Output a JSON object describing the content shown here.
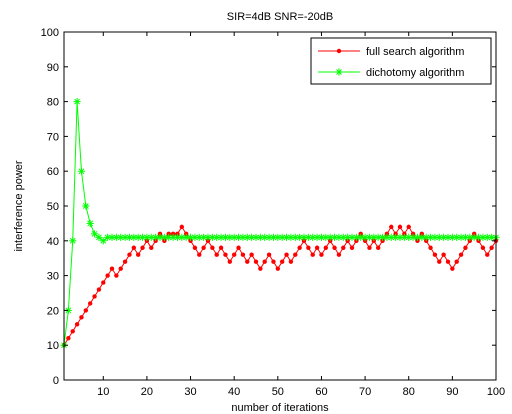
{
  "chart_data": {
    "type": "line",
    "title": "SIR=4dB SNR=-20dB",
    "xlabel": "number of iterations",
    "ylabel": "interference power",
    "xlim": [
      1,
      100
    ],
    "ylim": [
      0,
      100
    ],
    "xticks": [
      10,
      20,
      30,
      40,
      50,
      60,
      70,
      80,
      90,
      100
    ],
    "yticks": [
      0,
      10,
      20,
      30,
      40,
      50,
      60,
      70,
      80,
      90,
      100
    ],
    "grid": false,
    "legend_position": "top-right",
    "x": [
      1,
      2,
      3,
      4,
      5,
      6,
      7,
      8,
      9,
      10,
      11,
      12,
      13,
      14,
      15,
      16,
      17,
      18,
      19,
      20,
      21,
      22,
      23,
      24,
      25,
      26,
      27,
      28,
      29,
      30,
      31,
      32,
      33,
      34,
      35,
      36,
      37,
      38,
      39,
      40,
      41,
      42,
      43,
      44,
      45,
      46,
      47,
      48,
      49,
      50,
      51,
      52,
      53,
      54,
      55,
      56,
      57,
      58,
      59,
      60,
      61,
      62,
      63,
      64,
      65,
      66,
      67,
      68,
      69,
      70,
      71,
      72,
      73,
      74,
      75,
      76,
      77,
      78,
      79,
      80,
      81,
      82,
      83,
      84,
      85,
      86,
      87,
      88,
      89,
      90,
      91,
      92,
      93,
      94,
      95,
      96,
      97,
      98,
      99,
      100
    ],
    "series": [
      {
        "name": "full search algorithm",
        "color": "#ff0000",
        "marker": "dot",
        "values": [
          10,
          12,
          14,
          16,
          18,
          20,
          22,
          24,
          26,
          28,
          30,
          32,
          30,
          32,
          34,
          36,
          38,
          36,
          38,
          40,
          38,
          40,
          42,
          40,
          42,
          42,
          42,
          44,
          42,
          40,
          38,
          36,
          38,
          40,
          38,
          36,
          38,
          36,
          34,
          36,
          38,
          36,
          34,
          36,
          34,
          32,
          34,
          36,
          34,
          32,
          34,
          36,
          34,
          36,
          38,
          40,
          38,
          36,
          38,
          36,
          38,
          40,
          38,
          36,
          38,
          40,
          38,
          40,
          42,
          40,
          38,
          40,
          38,
          40,
          42,
          44,
          42,
          44,
          42,
          44,
          42,
          40,
          42,
          40,
          38,
          36,
          34,
          36,
          34,
          32,
          34,
          36,
          38,
          40,
          42,
          40,
          38,
          36,
          38,
          40
        ]
      },
      {
        "name": "dichotomy algorithm",
        "color": "#00ff00",
        "marker": "star",
        "values": [
          10,
          20,
          40,
          80,
          60,
          50,
          45,
          42,
          41,
          40,
          41,
          41,
          41,
          41,
          41,
          41,
          41,
          41,
          41,
          41,
          41,
          41,
          41,
          41,
          41,
          41,
          41,
          41,
          41,
          41,
          41,
          41,
          41,
          41,
          41,
          41,
          41,
          41,
          41,
          41,
          41,
          41,
          41,
          41,
          41,
          41,
          41,
          41,
          41,
          41,
          41,
          41,
          41,
          41,
          41,
          41,
          41,
          41,
          41,
          41,
          41,
          41,
          41,
          41,
          41,
          41,
          41,
          41,
          41,
          41,
          41,
          41,
          41,
          41,
          41,
          41,
          41,
          41,
          41,
          41,
          41,
          41,
          41,
          41,
          41,
          41,
          41,
          41,
          41,
          41,
          41,
          41,
          41,
          41,
          41,
          41,
          41,
          41,
          41,
          41
        ]
      }
    ]
  }
}
